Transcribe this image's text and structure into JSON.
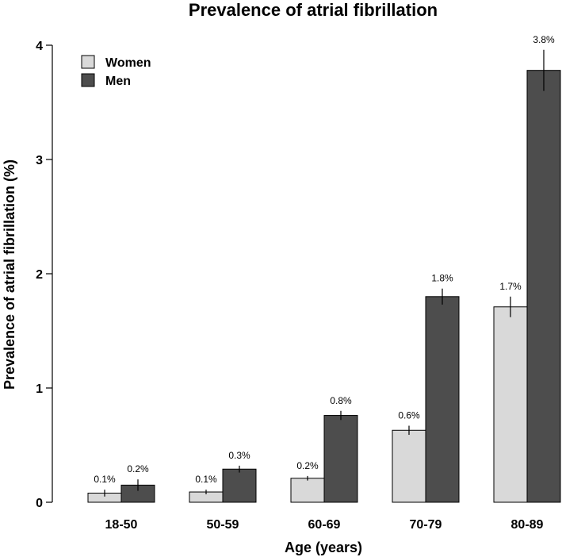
{
  "chart_data": {
    "type": "bar",
    "title": "Prevalence of atrial fibrillation",
    "xlabel": "Age (years)",
    "ylabel": "Prevalence of atrial fibrillation (%)",
    "ylim": [
      0,
      4
    ],
    "yticks": [
      "0",
      "1",
      "2",
      "3",
      "4"
    ],
    "categories": [
      "18-50",
      "50-59",
      "60-69",
      "70-79",
      "80-89"
    ],
    "legend_position": "top-left",
    "series": [
      {
        "name": "Women",
        "color": "#d9d9d9",
        "values": [
          0.08,
          0.09,
          0.21,
          0.63,
          1.71
        ],
        "errors": [
          0.03,
          0.02,
          0.02,
          0.04,
          0.09
        ],
        "labels": [
          "0.1%",
          "0.1%",
          "0.2%",
          "0.6%",
          "1.7%"
        ]
      },
      {
        "name": "Men",
        "color": "#4d4d4d",
        "values": [
          0.15,
          0.29,
          0.76,
          1.8,
          3.78
        ],
        "errors": [
          0.05,
          0.03,
          0.04,
          0.07,
          0.18
        ],
        "labels": [
          "0.2%",
          "0.3%",
          "0.8%",
          "1.8%",
          "3.8%"
        ]
      }
    ]
  }
}
